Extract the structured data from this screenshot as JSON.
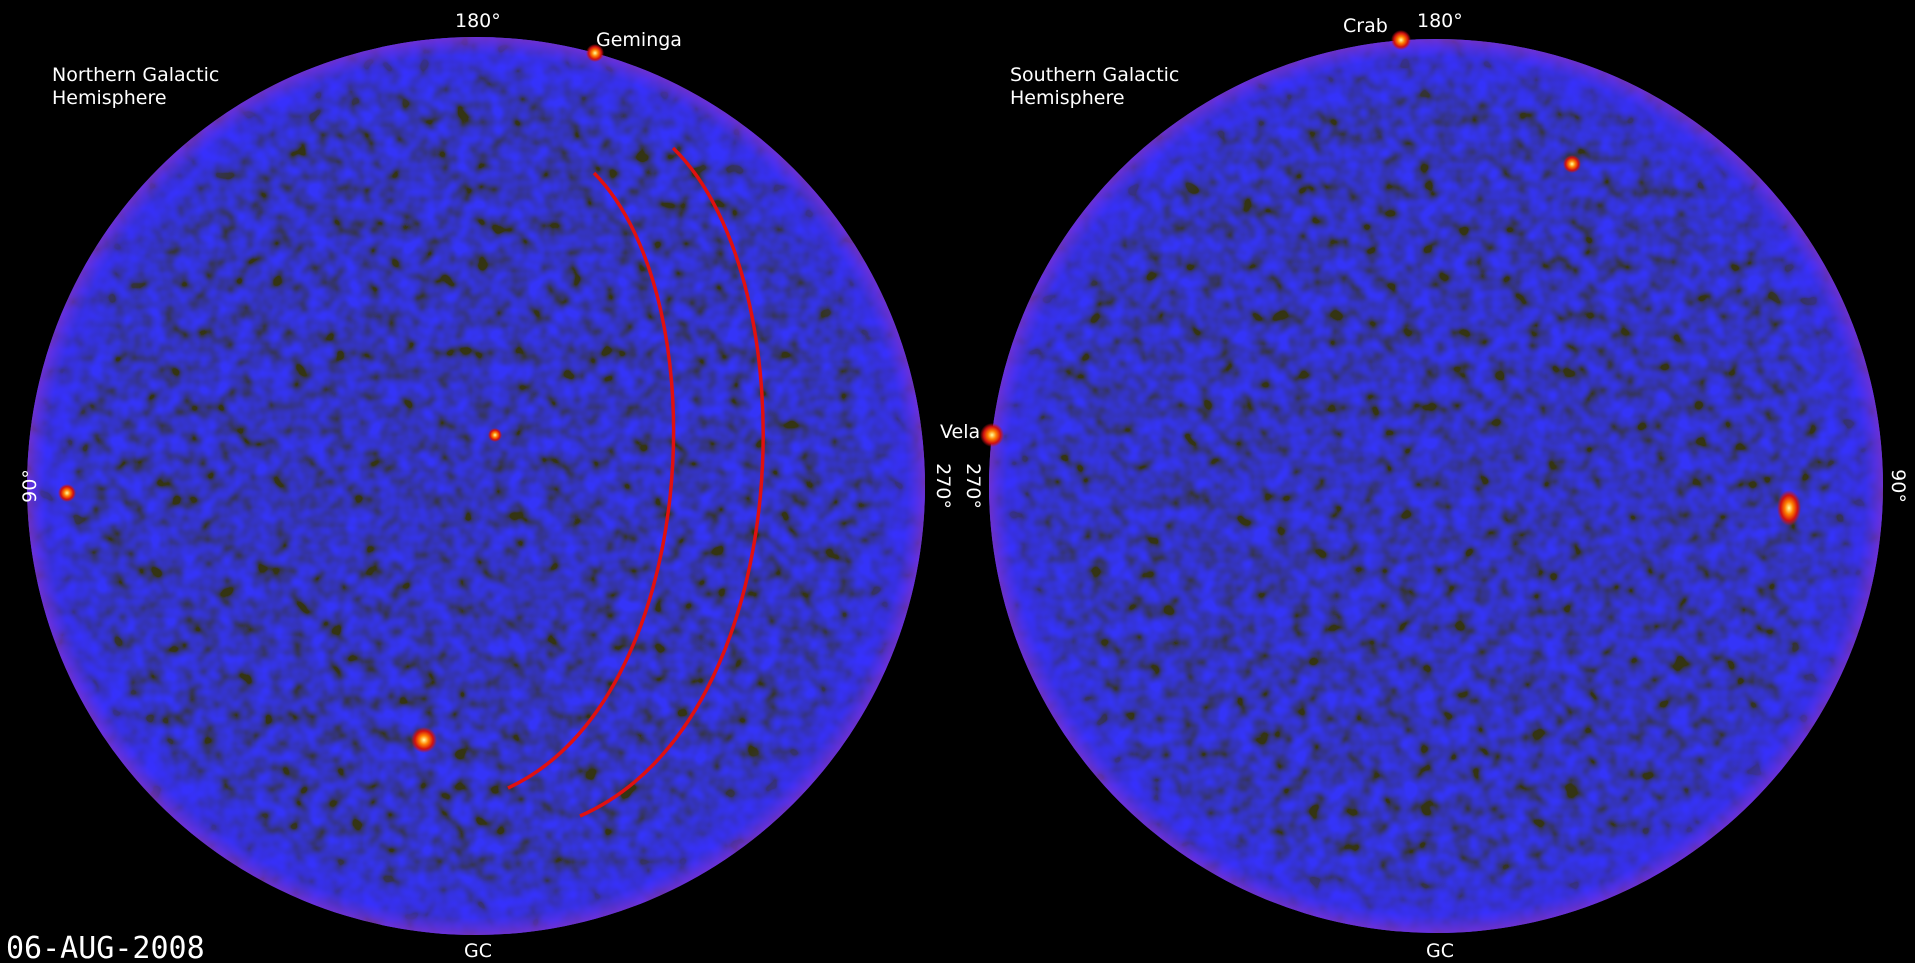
{
  "date": "06-AUG-2008",
  "north": {
    "title_line1": "Northern Galactic",
    "title_line2": "Hemisphere",
    "top_label": "180°",
    "source_label": "Geminga",
    "left_label": "90°",
    "right_label": "270°",
    "bottom_label": "GC"
  },
  "south": {
    "title_line1": "Southern Galactic",
    "title_line2": "Hemisphere",
    "top_label": "180°",
    "source_top_label": "Crab",
    "source_left_label": "Vela",
    "left_label": "270°",
    "right_label": "90°",
    "bottom_label": "GC"
  }
}
